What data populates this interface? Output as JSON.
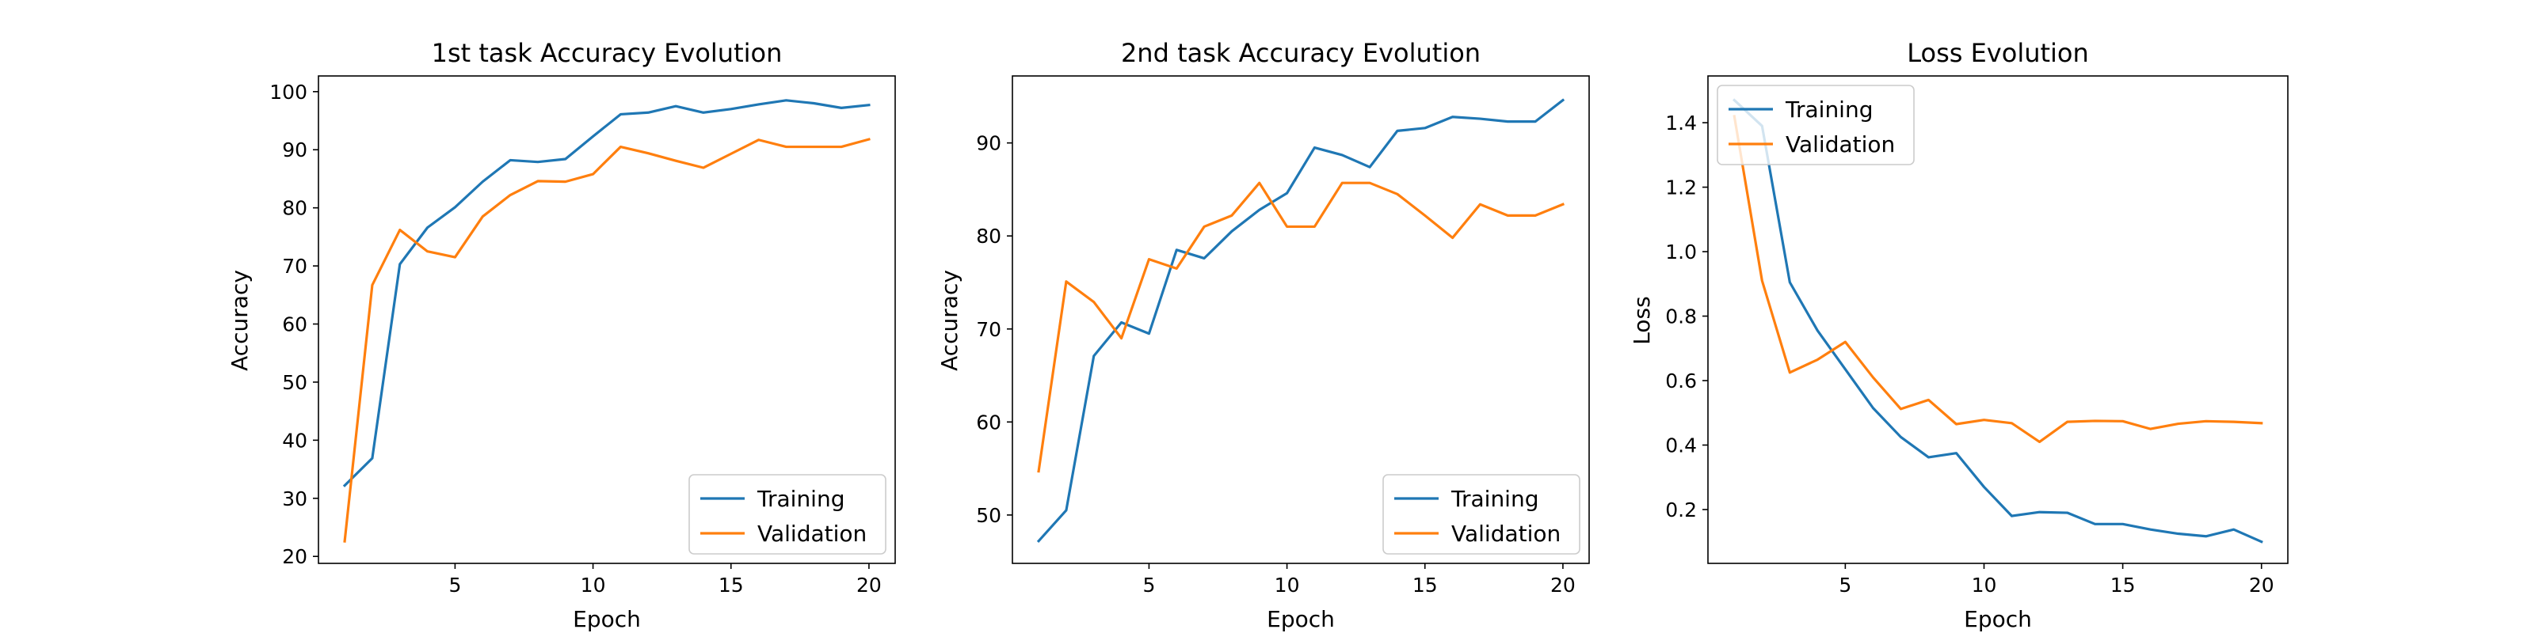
{
  "chart_data": [
    {
      "type": "line",
      "title": "1st task Accuracy Evolution",
      "xlabel": "Epoch",
      "ylabel": "Accuracy",
      "xlim": [
        0.05,
        20.95
      ],
      "ylim": [
        18.8,
        102.7
      ],
      "xticks": [
        5,
        10,
        15,
        20
      ],
      "yticks": [
        20,
        30,
        40,
        50,
        60,
        70,
        80,
        90,
        100
      ],
      "grid": false,
      "legend_loc": "lower right",
      "x": [
        1,
        2,
        3,
        4,
        5,
        6,
        7,
        8,
        9,
        10,
        11,
        12,
        13,
        14,
        15,
        16,
        17,
        18,
        19,
        20
      ],
      "series": [
        {
          "name": "Training",
          "color": "#1f77b4",
          "values": [
            32.2,
            36.9,
            70.3,
            76.6,
            80.1,
            84.5,
            88.2,
            87.9,
            88.4,
            92.3,
            96.1,
            96.4,
            97.5,
            96.4,
            97.0,
            97.8,
            98.5,
            98.0,
            97.2,
            97.7
          ]
        },
        {
          "name": "Validation",
          "color": "#ff7f0e",
          "values": [
            22.6,
            66.7,
            76.2,
            72.5,
            71.5,
            78.5,
            82.2,
            84.6,
            84.5,
            85.8,
            90.5,
            89.4,
            88.1,
            86.9,
            89.3,
            91.7,
            90.5,
            90.5,
            90.5,
            91.8
          ]
        }
      ]
    },
    {
      "type": "line",
      "title": "2nd task Accuracy Evolution",
      "xlabel": "Epoch",
      "ylabel": "Accuracy",
      "xlim": [
        0.05,
        20.95
      ],
      "ylim": [
        44.8,
        97.2
      ],
      "xticks": [
        5,
        10,
        15,
        20
      ],
      "yticks": [
        50,
        60,
        70,
        80,
        90
      ],
      "grid": false,
      "legend_loc": "lower right",
      "x": [
        1,
        2,
        3,
        4,
        5,
        6,
        7,
        8,
        9,
        10,
        11,
        12,
        13,
        14,
        15,
        16,
        17,
        18,
        19,
        20
      ],
      "series": [
        {
          "name": "Training",
          "color": "#1f77b4",
          "values": [
            47.2,
            50.5,
            67.1,
            70.7,
            69.5,
            78.5,
            77.6,
            80.5,
            82.8,
            84.6,
            89.5,
            88.7,
            87.4,
            91.3,
            91.6,
            92.8,
            92.6,
            92.3,
            92.3,
            94.6
          ]
        },
        {
          "name": "Validation",
          "color": "#ff7f0e",
          "values": [
            54.7,
            75.1,
            72.9,
            69.0,
            77.5,
            76.5,
            81.0,
            82.2,
            85.7,
            81.0,
            81.0,
            85.7,
            85.7,
            84.5,
            82.2,
            79.8,
            83.4,
            82.2,
            82.2,
            83.4
          ]
        }
      ]
    },
    {
      "type": "line",
      "title": "Loss Evolution",
      "xlabel": "Epoch",
      "ylabel": "Loss",
      "xlim": [
        0.05,
        20.95
      ],
      "ylim": [
        0.033,
        1.545
      ],
      "xticks": [
        5,
        10,
        15,
        20
      ],
      "yticks": [
        0.2,
        0.4,
        0.6,
        0.8,
        1.0,
        1.2,
        1.4
      ],
      "yticklabels": [
        "0.2",
        "0.4",
        "0.6",
        "0.8",
        "1.0",
        "1.2",
        "1.4"
      ],
      "grid": false,
      "legend_loc": "upper left",
      "x": [
        1,
        2,
        3,
        4,
        5,
        6,
        7,
        8,
        9,
        10,
        11,
        12,
        13,
        14,
        15,
        16,
        17,
        18,
        19,
        20
      ],
      "series": [
        {
          "name": "Training",
          "color": "#1f77b4",
          "values": [
            1.47,
            1.39,
            0.905,
            0.755,
            0.635,
            0.515,
            0.425,
            0.362,
            0.375,
            0.27,
            0.18,
            0.192,
            0.19,
            0.155,
            0.155,
            0.138,
            0.125,
            0.117,
            0.138,
            0.1
          ]
        },
        {
          "name": "Validation",
          "color": "#ff7f0e",
          "values": [
            1.42,
            0.91,
            0.625,
            0.665,
            0.72,
            0.61,
            0.512,
            0.54,
            0.465,
            0.478,
            0.468,
            0.41,
            0.472,
            0.475,
            0.474,
            0.45,
            0.466,
            0.474,
            0.472,
            0.468
          ]
        }
      ]
    }
  ]
}
